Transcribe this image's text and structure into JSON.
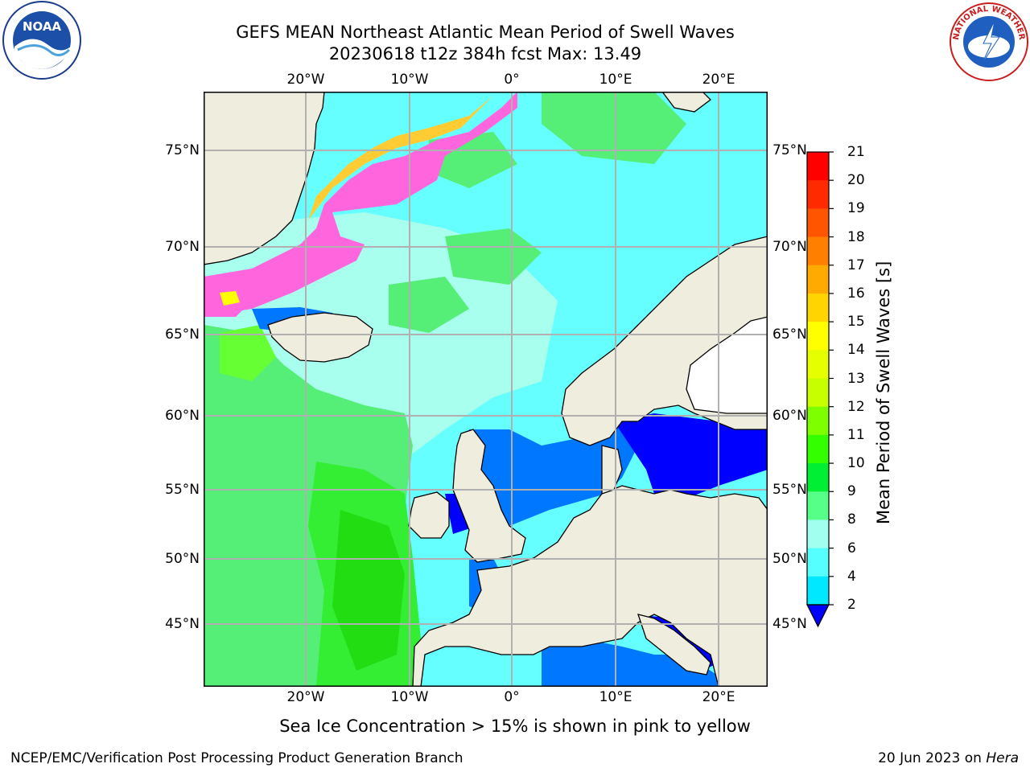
{
  "header": {
    "title_line1": "GEFS MEAN Northeast Atlantic Mean Period of Swell Waves",
    "title_line2": "20230618 t12z 384h fcst   Max: 13.49"
  },
  "logos": {
    "left": "NOAA",
    "right": "NATIONAL WEATHER SERVICE"
  },
  "map": {
    "lon_labels": [
      "20°W",
      "10°W",
      "0°",
      "10°E",
      "20°E"
    ],
    "lat_labels": [
      "75°N",
      "70°N",
      "65°N",
      "60°N",
      "55°N",
      "50°N",
      "45°N"
    ]
  },
  "colorbar": {
    "title": "Mean Period of Swell Waves [s]",
    "ticks": [
      "21",
      "20",
      "19",
      "18",
      "17",
      "16",
      "15",
      "14",
      "13",
      "12",
      "11",
      "10",
      "9",
      "8",
      "6",
      "4",
      "2"
    ],
    "colors": [
      "#ff0000",
      "#ff2a00",
      "#ff5500",
      "#ff8000",
      "#ffaa00",
      "#ffd400",
      "#ffff00",
      "#e6ff00",
      "#c8ff00",
      "#7dff00",
      "#33ff00",
      "#00ee33",
      "#55ff88",
      "#a0ffee",
      "#55ffff",
      "#00e8ff",
      "#0077ff"
    ],
    "under_color": "#0000ff"
  },
  "caption": "Sea Ice Concentration > 15% is shown in pink to yellow",
  "footer": {
    "left": "NCEP/EMC/Verification Post Processing Product Generation Branch",
    "right_prefix": "20 Jun 2023 on ",
    "right_host": "Hera"
  }
}
